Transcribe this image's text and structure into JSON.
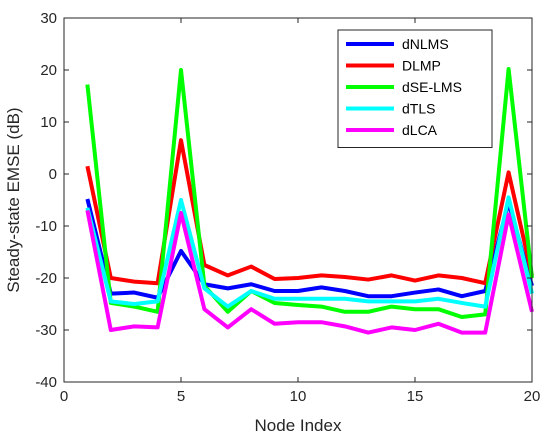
{
  "chart_data": {
    "type": "line",
    "title": "",
    "xlabel": "Node Index",
    "ylabel": "Steady-state  EMSE (dB)",
    "xlim": [
      0,
      20
    ],
    "ylim": [
      -40,
      30
    ],
    "xticks": [
      0,
      5,
      10,
      15,
      20
    ],
    "yticks": [
      -40,
      -30,
      -20,
      -10,
      0,
      10,
      20,
      30
    ],
    "grid": false,
    "legend_position": "top-right",
    "x": [
      1,
      2,
      3,
      4,
      5,
      6,
      7,
      8,
      9,
      10,
      11,
      12,
      13,
      14,
      15,
      16,
      17,
      18,
      19,
      20
    ],
    "series": [
      {
        "name": "dNLMS",
        "color": "#0000ff",
        "values": [
          -4.8,
          -23.0,
          -22.8,
          -23.8,
          -14.8,
          -21.2,
          -22.0,
          -21.2,
          -22.5,
          -22.5,
          -21.8,
          -22.5,
          -23.5,
          -23.5,
          -22.8,
          -22.2,
          -23.5,
          -22.5,
          -5.5,
          -21.5
        ]
      },
      {
        "name": "DLMP",
        "color": "#ff0000",
        "values": [
          1.5,
          -20.0,
          -20.7,
          -21.0,
          6.5,
          -17.5,
          -19.5,
          -17.8,
          -20.2,
          -20.0,
          -19.5,
          -19.8,
          -20.3,
          -19.5,
          -20.5,
          -19.5,
          -20.0,
          -21.0,
          0.3,
          -19.5
        ]
      },
      {
        "name": "dSE-LMS",
        "color": "#00ff00",
        "values": [
          17.2,
          -24.8,
          -25.5,
          -26.5,
          20.0,
          -21.5,
          -26.5,
          -22.5,
          -24.8,
          -25.2,
          -25.5,
          -26.5,
          -26.5,
          -25.5,
          -26.0,
          -26.0,
          -27.5,
          -27.0,
          20.2,
          -20.0
        ]
      },
      {
        "name": "dTLS",
        "color": "#00ffff",
        "values": [
          -6.5,
          -24.5,
          -25.0,
          -24.5,
          -5.0,
          -22.0,
          -25.5,
          -22.5,
          -24.0,
          -24.0,
          -24.0,
          -24.0,
          -24.5,
          -24.5,
          -24.5,
          -24.0,
          -24.8,
          -25.5,
          -4.5,
          -23.0
        ]
      },
      {
        "name": "dLCA",
        "color": "#ff00ff",
        "values": [
          -7.0,
          -30.0,
          -29.3,
          -29.5,
          -7.5,
          -26.0,
          -29.5,
          -26.0,
          -28.8,
          -28.5,
          -28.5,
          -29.3,
          -30.5,
          -29.5,
          -30.0,
          -28.8,
          -30.5,
          -30.5,
          -7.8,
          -26.5
        ]
      }
    ]
  }
}
